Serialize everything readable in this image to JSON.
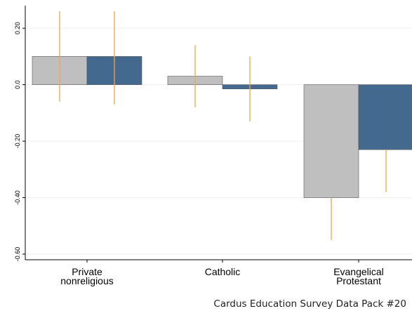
{
  "chart_data": {
    "type": "bar",
    "categories": [
      [
        "Private",
        "nonreligious"
      ],
      [
        "Catholic"
      ],
      [
        "Evangelical",
        "Protestant"
      ]
    ],
    "series": [
      {
        "color": "#bfbfbf",
        "values": [
          0.1,
          0.03,
          -0.4
        ],
        "error_low": [
          -0.06,
          -0.08,
          -0.55
        ],
        "error_high": [
          0.26,
          0.14,
          -0.4
        ]
      },
      {
        "color": "#44698e",
        "values": [
          0.1,
          -0.015,
          -0.23
        ],
        "error_low": [
          -0.07,
          -0.13,
          -0.38
        ],
        "error_high": [
          0.26,
          0.1,
          -0.23
        ]
      }
    ],
    "ylim": [
      -0.62,
      0.28
    ],
    "yticks": [
      0.2,
      0.0,
      -0.2,
      -0.4,
      -0.6
    ],
    "ytick_labels": [
      "0.20",
      "0.0",
      "-0.20",
      "-0.40",
      "-0.60"
    ],
    "grid": true,
    "error_bar_color": "#f5a442",
    "legend": "none"
  },
  "footer": {
    "text": "Cardus Education Survey Data Pack #20"
  }
}
